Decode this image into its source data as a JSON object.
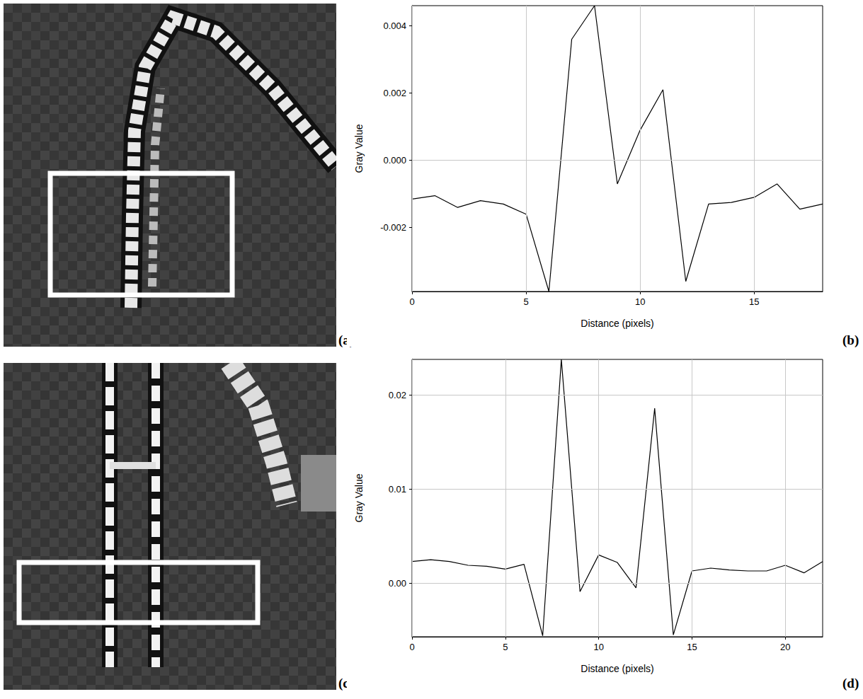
{
  "images": [
    {
      "label": "(a)"
    },
    {
      "label": "(c)"
    }
  ],
  "chart_data": [
    {
      "type": "line",
      "label": "(b)",
      "x_label": "Distance (pixels)",
      "y_label": "Gray Value",
      "x": [
        0,
        1,
        2,
        3,
        4,
        5,
        6,
        7,
        8,
        9,
        10,
        11,
        12,
        13,
        14,
        15,
        16,
        17,
        18
      ],
      "values": [
        -0.00115,
        -0.00105,
        -0.0014,
        -0.0012,
        -0.0013,
        -0.0016,
        -0.0039,
        0.0036,
        0.0046,
        -0.0007,
        0.0009,
        0.0021,
        -0.0036,
        -0.0013,
        -0.00125,
        -0.0011,
        -0.0007,
        -0.00145,
        -0.0013
      ],
      "color": "#000000",
      "xlim": [
        0,
        18
      ],
      "xticks": [
        0,
        5,
        10,
        15
      ],
      "ylim": [
        -0.0039,
        0.0046
      ],
      "yticks": [
        -0.002,
        {
          "value": 0,
          "label": "0.000"
        },
        0.002,
        0.004
      ],
      "grid": true
    },
    {
      "type": "line",
      "label": "(d)",
      "x_label": "Distance (pixels)",
      "y_label": "Gray Value",
      "x": [
        0,
        1,
        2,
        3,
        4,
        5,
        6,
        7,
        8,
        9,
        10,
        11,
        12,
        13,
        14,
        15,
        16,
        17,
        18,
        19,
        20,
        21,
        22
      ],
      "values": [
        0.0023,
        0.0025,
        0.0023,
        0.0019,
        0.0018,
        0.0015,
        0.002,
        -0.0056,
        0.0238,
        -0.0009,
        0.003,
        0.0022,
        -0.0005,
        0.0186,
        -0.0055,
        0.0013,
        0.0016,
        0.0014,
        0.0013,
        0.0013,
        0.0019,
        0.0011,
        0.0023
      ],
      "color": "#000000",
      "xlim": [
        0,
        22
      ],
      "xticks": [
        0,
        5,
        10,
        15,
        20
      ],
      "ylim": [
        -0.0057,
        0.0238
      ],
      "yticks": [
        {
          "value": 0,
          "label": "0.00"
        },
        {
          "value": 0.01,
          "label": "0.01"
        },
        {
          "value": 0.02,
          "label": "0.02"
        }
      ],
      "grid": true
    }
  ]
}
